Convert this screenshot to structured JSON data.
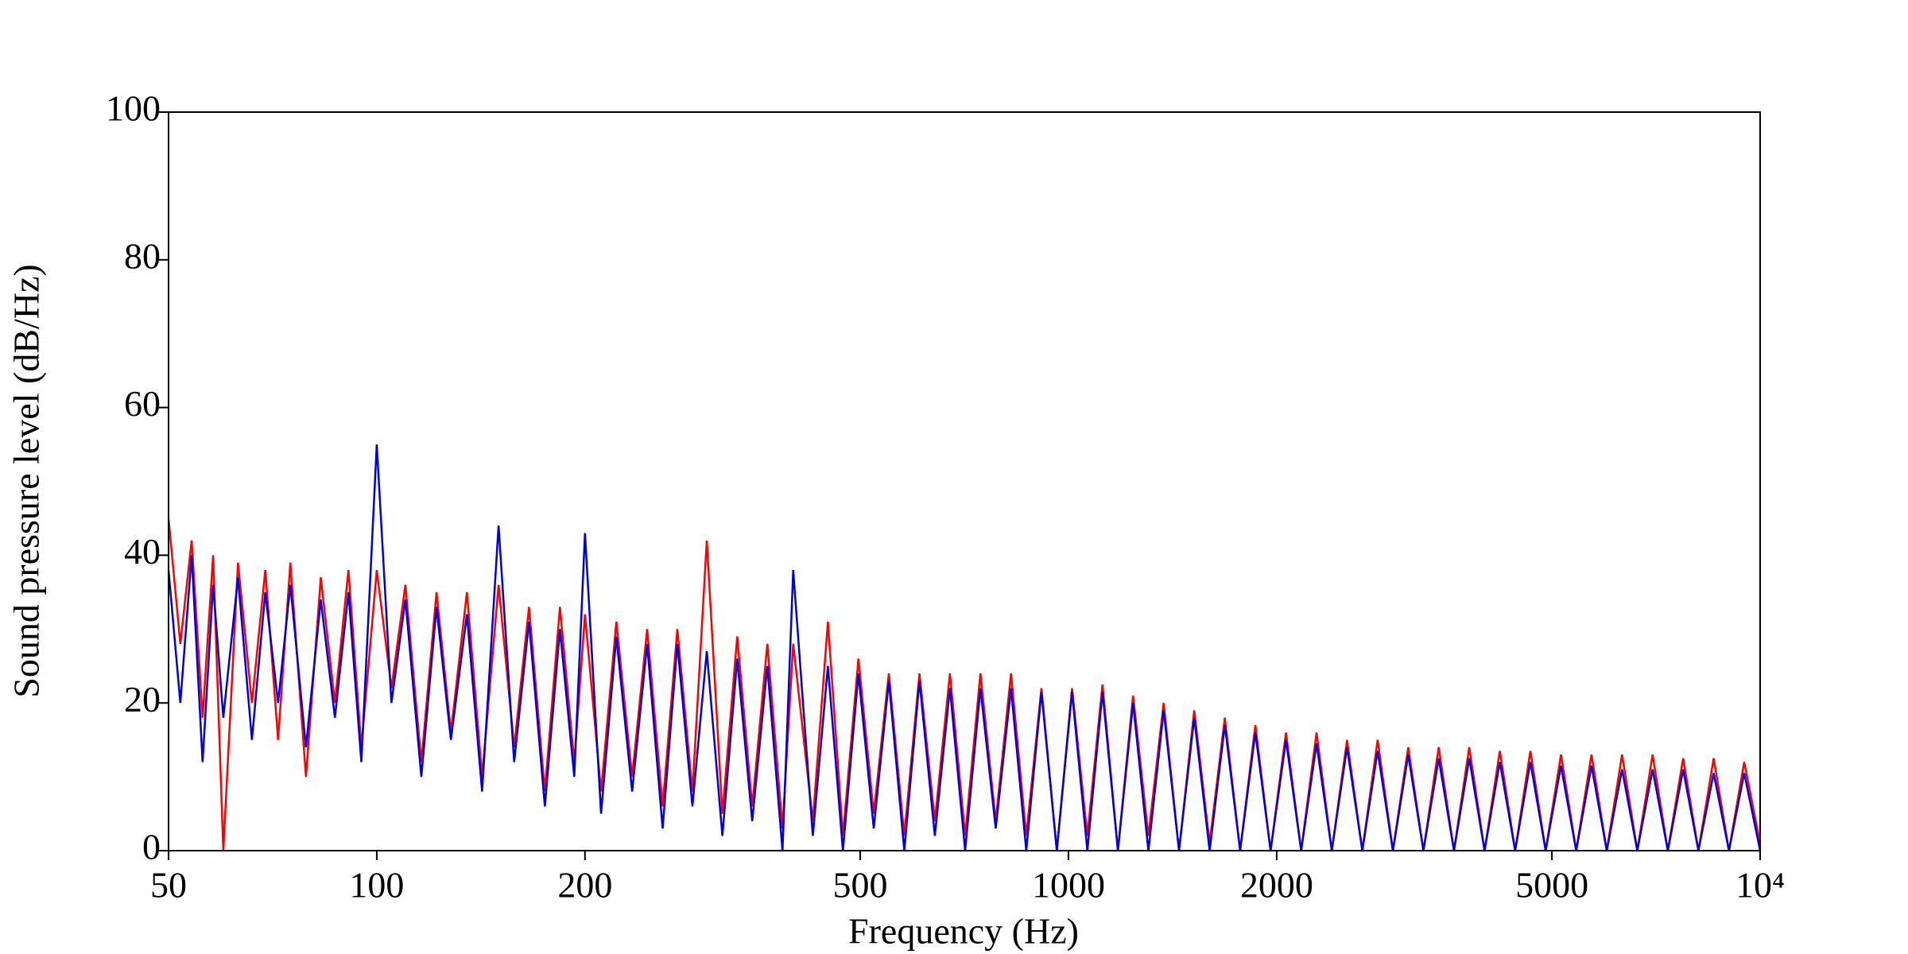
{
  "chart_data": {
    "type": "line",
    "xlabel": "Frequency (Hz)",
    "ylabel": "Sound pressure level (dB/Hz)",
    "xscale": "log",
    "x": [
      50,
      52,
      54,
      56,
      58,
      60,
      63,
      66,
      69,
      72,
      75,
      79,
      83,
      87,
      91,
      95,
      100,
      105,
      110,
      116,
      122,
      128,
      135,
      142,
      150,
      158,
      166,
      175,
      184,
      193,
      200,
      211,
      222,
      234,
      246,
      259,
      272,
      286,
      300,
      316,
      332,
      349,
      367,
      386,
      400,
      427,
      449,
      472,
      497,
      523,
      550,
      579,
      609,
      641,
      674,
      709,
      746,
      785,
      826,
      869,
      914,
      962,
      1012,
      1065,
      1120,
      1179,
      1240,
      1305,
      1373,
      1445,
      1520,
      1600,
      1683,
      1771,
      1863,
      1960,
      2063,
      2170,
      2284,
      2403,
      2528,
      2660,
      2799,
      2945,
      3099,
      3260,
      3430,
      3609,
      3797,
      3996,
      4204,
      4424,
      4654,
      4897,
      5153,
      5421,
      5704,
      6002,
      6315,
      6644,
      6991,
      7355,
      7739,
      8143,
      8567,
      9014,
      9484,
      10000
    ],
    "series": [
      {
        "color": "#ff0000",
        "values": [
          45,
          28,
          42,
          18,
          40,
          0,
          39,
          20,
          38,
          15,
          39,
          10,
          37,
          20,
          38,
          14,
          38,
          22,
          36,
          12,
          35,
          16,
          35,
          10,
          36,
          14,
          33,
          8,
          33,
          12,
          32,
          8,
          31,
          10,
          30,
          6,
          30,
          8,
          42,
          5,
          29,
          6,
          28,
          3,
          28,
          4,
          31,
          2,
          26,
          5,
          24,
          2,
          24,
          4,
          24,
          2,
          24,
          4,
          24,
          2,
          22,
          0,
          22,
          2,
          22.5,
          0,
          21,
          2,
          20,
          0,
          19,
          1,
          18,
          0,
          17,
          0,
          16,
          0,
          16,
          0,
          15,
          0,
          15,
          0,
          14,
          0,
          14,
          0,
          14,
          0,
          13.5,
          0,
          13.5,
          0,
          13,
          0,
          13,
          0,
          13,
          0,
          13,
          0,
          12.5,
          0,
          12.5,
          0,
          12,
          1
        ]
      },
      {
        "color": "#0000dd",
        "values": [
          38,
          20,
          40,
          12,
          36,
          18,
          37,
          15,
          35,
          20,
          36,
          14,
          34,
          18,
          35,
          12,
          55,
          20,
          34,
          10,
          33,
          15,
          32,
          8,
          44,
          12,
          31,
          6,
          30,
          10,
          43,
          5,
          29,
          8,
          28,
          3,
          28,
          6,
          27,
          2,
          26,
          4,
          25,
          0,
          38,
          2,
          25,
          0,
          24,
          3,
          23,
          0,
          23,
          2,
          22,
          0,
          22,
          3,
          22,
          0,
          21.5,
          0,
          21.5,
          0,
          21.5,
          0,
          20,
          0,
          19,
          0,
          18,
          0,
          17,
          0,
          16,
          0,
          15,
          0,
          14.5,
          0,
          14,
          0,
          13.5,
          0,
          13,
          0,
          12.5,
          0,
          12.5,
          0,
          12,
          0,
          12,
          0,
          11.5,
          0,
          11.5,
          0,
          11,
          0,
          11,
          0,
          11,
          0,
          10.5,
          0,
          10.5,
          0
        ]
      }
    ],
    "xlim": [
      50,
      10000
    ],
    "xticks": [
      50,
      100,
      200,
      500,
      1000,
      2000,
      5000,
      {
        "value": 10000,
        "label": "10⁴"
      }
    ],
    "ylim": [
      0,
      100
    ],
    "yticks": [
      0,
      20,
      40,
      60,
      80,
      100
    ]
  }
}
